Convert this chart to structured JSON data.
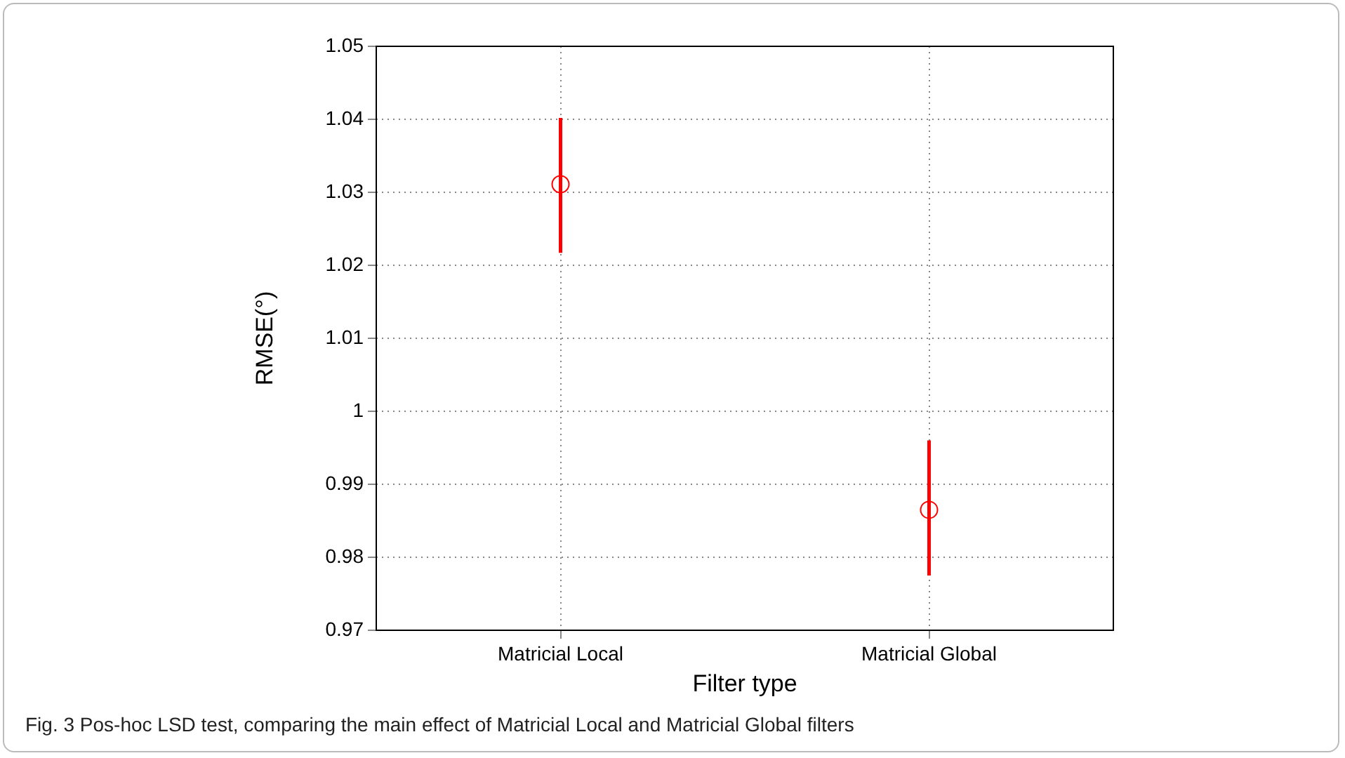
{
  "chart_data": {
    "type": "scatter",
    "xlabel": "Filter type",
    "ylabel": "RMSE(°)",
    "categories": [
      "Matricial Local",
      "Matricial Global"
    ],
    "series": [
      {
        "color": "#ff0000",
        "values": [
          1.0311,
          0.9865
        ],
        "errors": [
          [
            1.0217,
            1.0402
          ],
          [
            0.9775,
            0.996
          ]
        ]
      }
    ],
    "ylim": [
      0.97,
      1.05
    ],
    "yticks": [
      0.97,
      0.98,
      0.99,
      1,
      1.01,
      1.02,
      1.03,
      1.04,
      1.05
    ],
    "grid": true,
    "marker": "circle",
    "legend": false,
    "annotations": [
      "Fig. 3  Pos-hoc LSD test, comparing the main effect of Matricial Local and Matricial Global filters"
    ]
  }
}
